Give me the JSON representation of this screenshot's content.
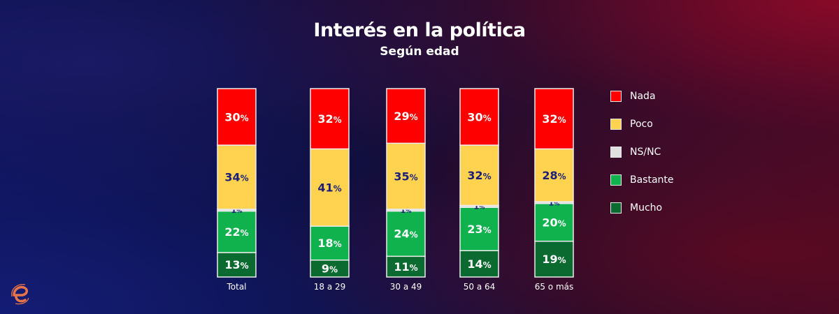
{
  "chart_data": {
    "type": "bar",
    "stacked": true,
    "orientation": "vertical",
    "title": "Interés en la política",
    "subtitle": "Según edad",
    "xlabel": "",
    "ylabel": "",
    "ylim": [
      0,
      100
    ],
    "grid": false,
    "legend_position": "right",
    "categories": [
      "Total",
      "18 a 29",
      "30 a 49",
      "50 a 64",
      "65 o más"
    ],
    "series": [
      {
        "name": "Mucho",
        "color": "#0b6a2f",
        "label_color": "#ffffff",
        "values": [
          13,
          9,
          11,
          14,
          19
        ]
      },
      {
        "name": "Bastante",
        "color": "#10b24e",
        "label_color": "#ffffff",
        "values": [
          22,
          18,
          24,
          23,
          20
        ]
      },
      {
        "name": "NS/NC",
        "color": "#e0e0e0",
        "label_color": "#1b1f7a",
        "values": [
          1,
          0,
          1,
          1,
          1
        ]
      },
      {
        "name": "Poco",
        "color": "#ffd34f",
        "label_color": "#1b1f7a",
        "values": [
          34,
          41,
          35,
          32,
          28
        ]
      },
      {
        "name": "Nada",
        "color": "#ff0000",
        "label_color": "#ffffff",
        "values": [
          30,
          32,
          29,
          30,
          32
        ]
      }
    ],
    "value_suffix": "%",
    "legend_order": [
      "Nada",
      "Poco",
      "NS/NC",
      "Bastante",
      "Mucho"
    ]
  },
  "logo": {
    "glyph": "e",
    "color": "#e8744a",
    "icon": "brand-logo-icon"
  }
}
